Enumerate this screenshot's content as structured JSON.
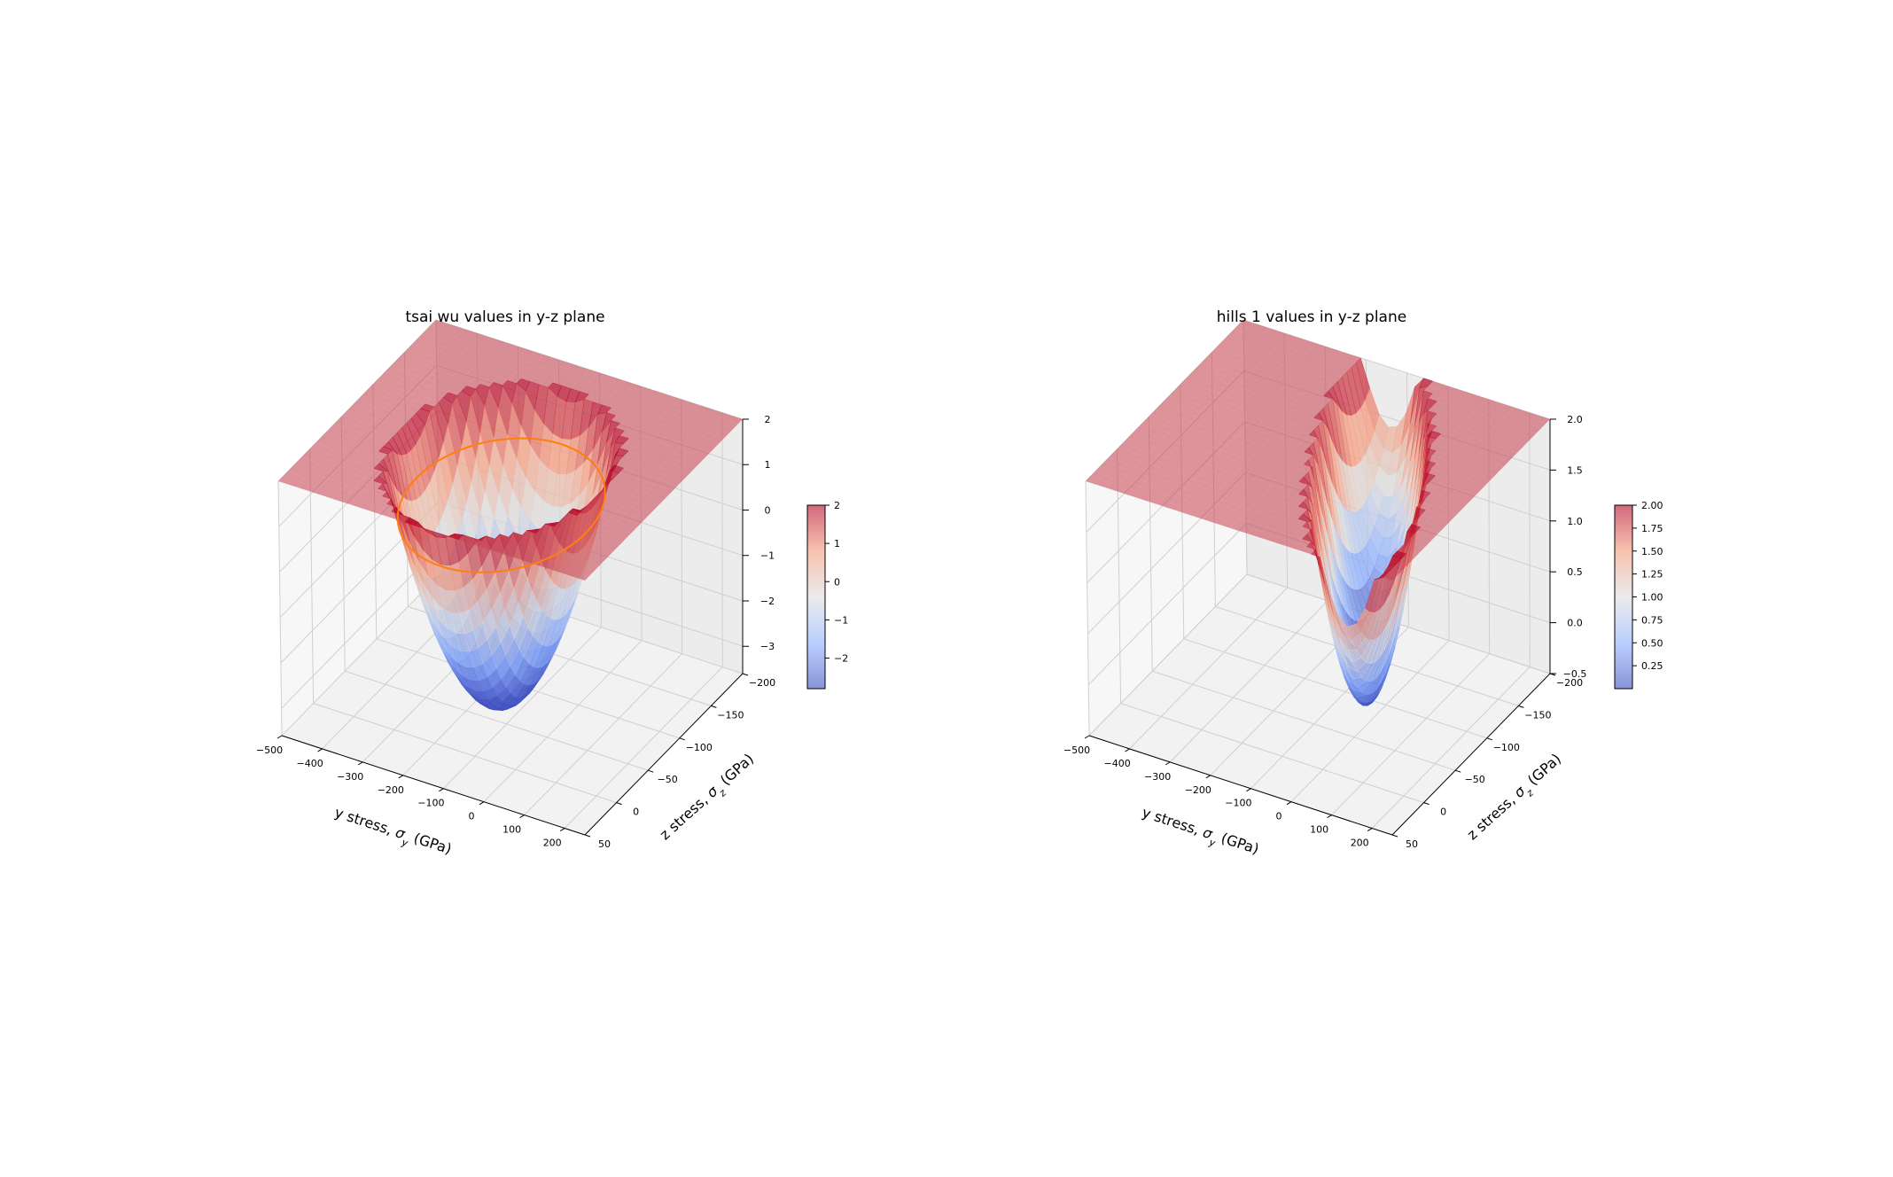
{
  "chart_data": [
    {
      "type": "surface3d",
      "title": "tsai wu values in y-z plane",
      "xlabel": "y stress, σ_y (GPa)",
      "ylabel": "z stress, σ_z (GPa)",
      "zlabel": "",
      "xlim": [
        -500,
        250
      ],
      "ylim": [
        -200,
        50
      ],
      "zlim": [
        -3.6,
        2
      ],
      "xticks": [
        "−500",
        "−400",
        "−300",
        "−200",
        "−100",
        "0",
        "100",
        "200"
      ],
      "yticks": [
        "−200",
        "−150",
        "−100",
        "−50",
        "0",
        "50"
      ],
      "zticks": [
        "−3",
        "−2",
        "−1",
        "0",
        "1",
        "2"
      ],
      "surface": {
        "shape": "paraboloid bowl, capped at plane z = 2",
        "vertex": {
          "y_stress": -125,
          "z_stress": -60,
          "value": -3.4
        },
        "cap_value": 2
      },
      "overlay_curve": {
        "description": "failure contour (value = 1) at z = 1",
        "color": "#ff7f0e"
      },
      "colormap": "coolwarm",
      "colorbar": {
        "ticks": [
          "−2",
          "−1",
          "0",
          "1",
          "2"
        ],
        "range": [
          -2.8,
          2
        ]
      }
    },
    {
      "type": "surface3d",
      "title": "hills 1 values in y-z plane",
      "xlabel": "y stress, σ_y (GPa)",
      "ylabel": "z stress, σ_z (GPa)",
      "zlabel": "",
      "xlim": [
        -500,
        250
      ],
      "ylim": [
        -200,
        50
      ],
      "zlim": [
        -0.5,
        2
      ],
      "xticks": [
        "−500",
        "−400",
        "−300",
        "−200",
        "−100",
        "0",
        "100",
        "200"
      ],
      "yticks": [
        "−200",
        "−150",
        "−100",
        "−50",
        "0",
        "50"
      ],
      "zticks": [
        "−0.5",
        "0.0",
        "0.5",
        "1.0",
        "1.5",
        "2.0"
      ],
      "surface": {
        "shape": "elongated trough, capped at plane z = 2",
        "vertex": {
          "y_stress": 0,
          "z_stress": -75,
          "value": -0.2
        },
        "cap_value": 2
      },
      "colormap": "coolwarm",
      "colorbar": {
        "ticks": [
          "0.25",
          "0.50",
          "0.75",
          "1.00",
          "1.25",
          "1.50",
          "1.75",
          "2.00"
        ],
        "range": [
          0.0,
          2.0
        ]
      }
    }
  ]
}
